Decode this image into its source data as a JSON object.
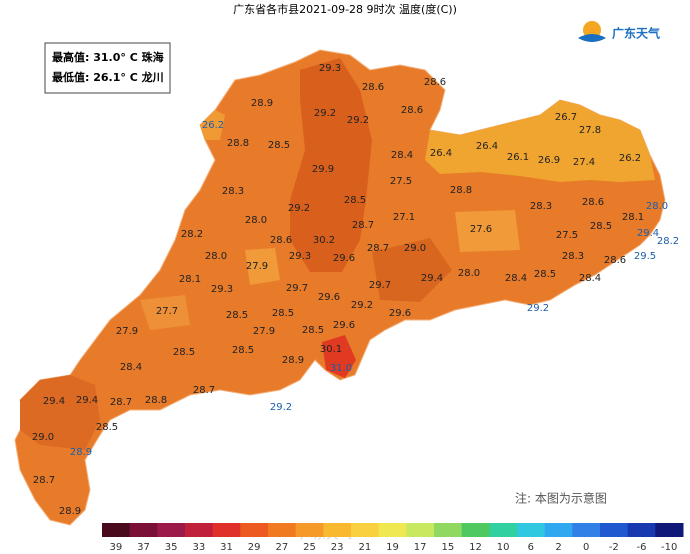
{
  "map": {
    "title": "广东省各市县2021-09-28 9时次 温度(度(C))",
    "info": [
      "最高值: 31.0° C 珠海",
      "最低值: 26.1° C 龙川"
    ],
    "logo": "广东天气",
    "note": "注: 本图为示意图",
    "watermark": "广东天气",
    "labels": [
      "29.3",
      "28.6",
      "28.6",
      "28.9",
      "29.2",
      "29.2",
      "28.6",
      "26.7",
      "27.8",
      "26.2",
      "28.8",
      "28.5",
      "28.4",
      "26.4",
      "26.4",
      "26.1",
      "26.9",
      "27.4",
      "26.2",
      "29.9",
      "27.5",
      "28.3",
      "28.8",
      "28.5",
      "29.2",
      "27.1",
      "28.3",
      "28.6",
      "28.0",
      "28.0",
      "28.7",
      "28.1",
      "28.2",
      "27.6",
      "28.6",
      "30.2",
      "27.5",
      "28.5",
      "29.4",
      "28.2",
      "28.0",
      "27.9",
      "29.3",
      "29.6",
      "28.7",
      "29.0",
      "28.3",
      "28.6",
      "29.5",
      "28.1",
      "29.3",
      "29.7",
      "29.7",
      "29.4",
      "28.0",
      "28.4",
      "28.5",
      "28.4",
      "27.7",
      "29.6",
      "29.2",
      "28.5",
      "28.5",
      "29.6",
      "29.2",
      "27.9",
      "27.9",
      "28.5",
      "29.6",
      "28.5",
      "28.5",
      "30.1",
      "28.9",
      "28.4",
      "31.0",
      "28.7",
      "29.4",
      "29.4",
      "28.7",
      "28.8",
      "29.2",
      "28.5",
      "29.0",
      "28.9",
      "28.7",
      "28.9"
    ],
    "scale": {
      "labels": [
        39,
        37,
        35,
        33,
        31,
        29,
        27,
        25,
        23,
        21,
        19,
        17,
        15,
        12,
        10,
        6,
        2,
        0,
        -2,
        -6,
        -10
      ],
      "colors": [
        "#4a0a1e",
        "#7a1038",
        "#9c1a4a",
        "#c0203a",
        "#e0302a",
        "#ec5a22",
        "#f07a20",
        "#f59a28",
        "#f8b830",
        "#f8d040",
        "#f0e850",
        "#c8e860",
        "#90d860",
        "#50c860",
        "#30d0a0",
        "#30c8e0",
        "#30a8f0",
        "#3080e8",
        "#2058d0",
        "#1838b0",
        "#101878"
      ]
    }
  }
}
